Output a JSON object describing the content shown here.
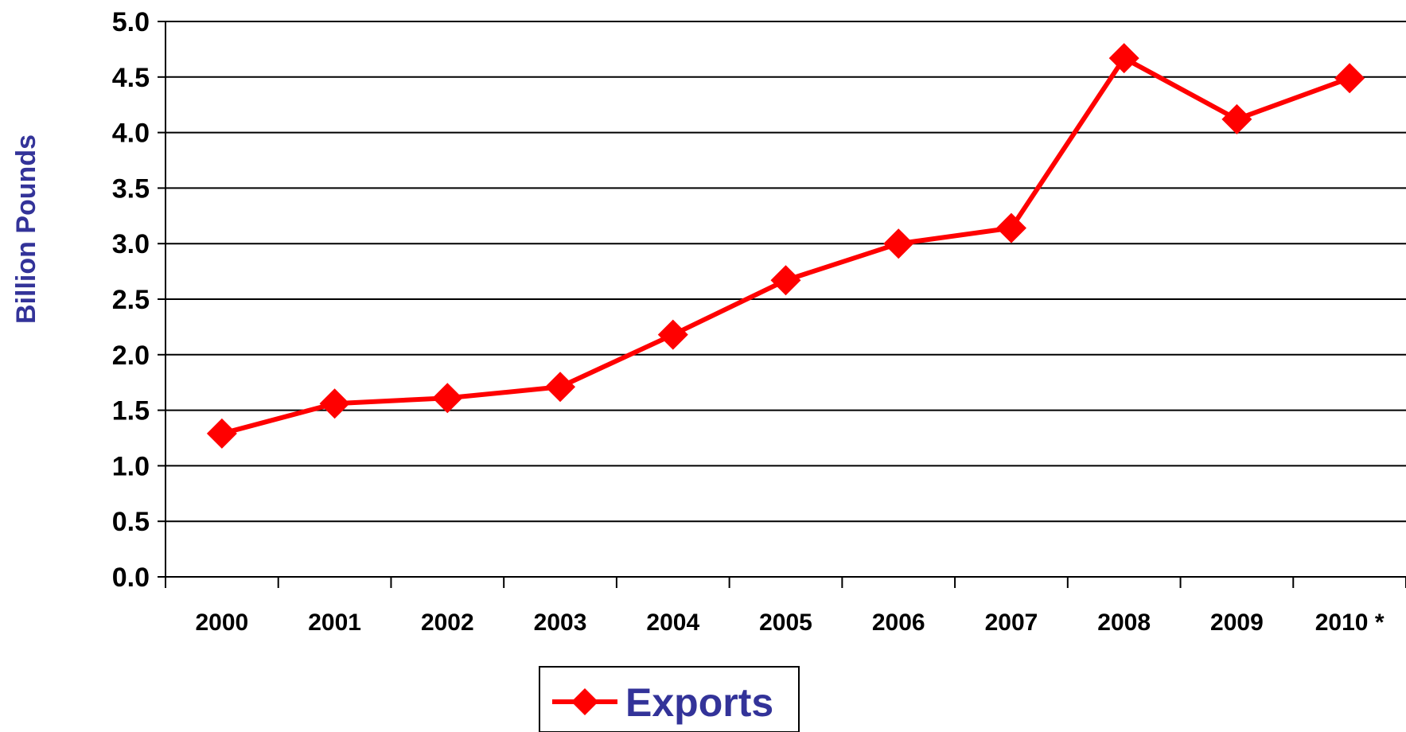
{
  "colors": {
    "series": "#ff0000",
    "axis_label": "#333399",
    "legend_text": "#333399",
    "grid": "#000000"
  },
  "chart_data": {
    "type": "line",
    "title": "",
    "xlabel": "",
    "ylabel": "Billion Pounds",
    "categories": [
      "2000",
      "2001",
      "2002",
      "2003",
      "2004",
      "2005",
      "2006",
      "2007",
      "2008",
      "2009",
      "2010 *"
    ],
    "ylim": [
      0,
      5
    ],
    "yticks": [
      "0.0",
      "0.5",
      "1.0",
      "1.5",
      "2.0",
      "2.5",
      "3.0",
      "3.5",
      "4.0",
      "4.5",
      "5.0"
    ],
    "grid": true,
    "legend_position": "bottom",
    "series": [
      {
        "name": "Exports",
        "marker": "diamond",
        "values": [
          1.29,
          1.56,
          1.61,
          1.71,
          2.18,
          2.67,
          3.0,
          3.14,
          4.67,
          4.12,
          4.49
        ]
      }
    ]
  }
}
